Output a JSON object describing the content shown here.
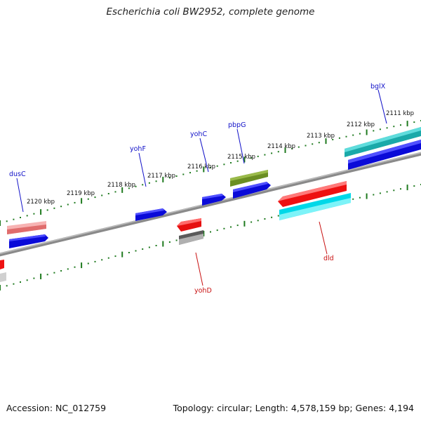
{
  "title": "Escherichia coli BW2952, complete genome",
  "footer": {
    "accession": "Accession: NC_012759",
    "summary": "Topology: circular; Length: 4,578,159 bp; Genes: 4,194"
  },
  "scale": {
    "ticks": [
      "2120 kbp",
      "2119 kbp",
      "2118 kbp",
      "2117 kbp",
      "2116 kbp",
      "2115 kbp",
      "2114 kbp",
      "2113 kbp",
      "2112 kbp",
      "2111 kbp"
    ]
  },
  "genes": {
    "dusC": "dusC",
    "yohF": "yohF",
    "yohC": "yohC",
    "pbpG": "pbpG",
    "bglX": "bglX",
    "yohD": "yohD",
    "dld": "dld"
  },
  "colors": {
    "backbone": "#777777",
    "tick": "#1f7a1f",
    "forward_label": "#1010c8",
    "reverse_label": "#c81010",
    "blue": "#1010e0",
    "salmon": "#e88a8a",
    "olive": "#6b8e23",
    "teal": "#20b2aa",
    "red": "#ee1111",
    "cyan": "#00e5ee",
    "grey": "#666666"
  }
}
